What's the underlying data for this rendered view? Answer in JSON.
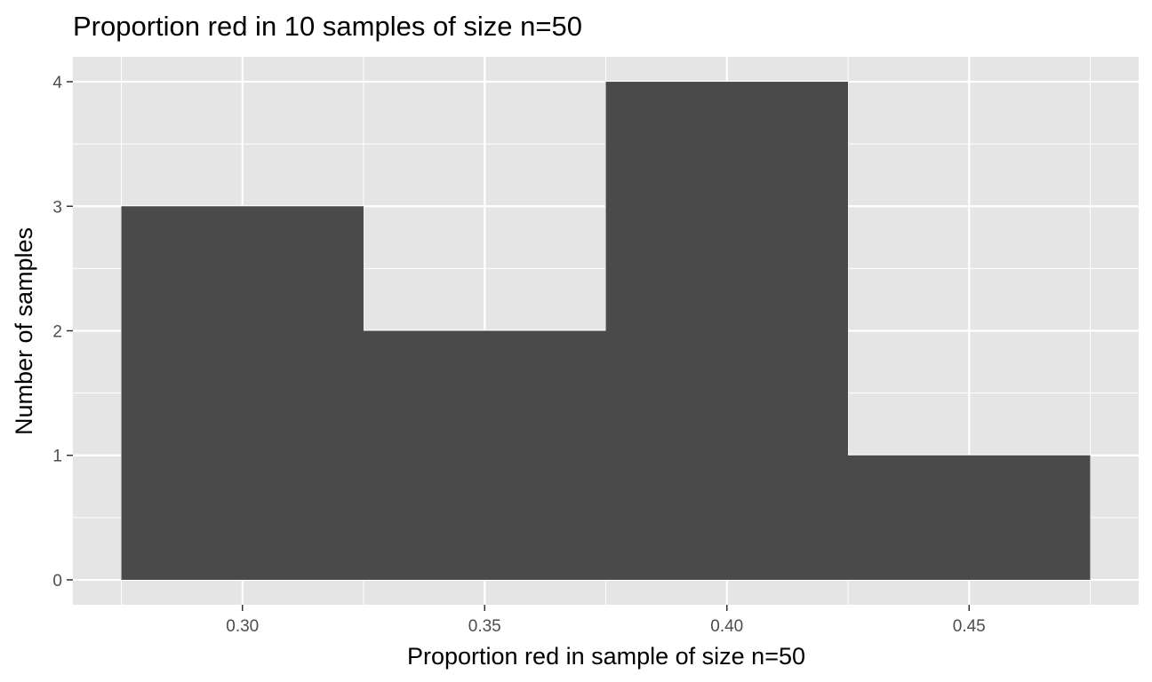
{
  "chart_data": {
    "type": "bar",
    "title": "Proportion red in 10 samples of size n=50",
    "xlabel": "Proportion red in sample of size n=50",
    "ylabel": "Number of samples",
    "bins": [
      {
        "x_start": 0.275,
        "x_end": 0.325,
        "count": 3
      },
      {
        "x_start": 0.325,
        "x_end": 0.375,
        "count": 2
      },
      {
        "x_start": 0.375,
        "x_end": 0.425,
        "count": 4
      },
      {
        "x_start": 0.425,
        "x_end": 0.475,
        "count": 1
      }
    ],
    "xlim": [
      0.265,
      0.485
    ],
    "ylim": [
      -0.2,
      4.2
    ],
    "x_ticks": [
      0.3,
      0.35,
      0.4,
      0.45
    ],
    "x_tick_labels": [
      "0.30",
      "0.35",
      "0.40",
      "0.45"
    ],
    "y_ticks": [
      0,
      1,
      2,
      3,
      4
    ],
    "y_tick_labels": [
      "0",
      "1",
      "2",
      "3",
      "4"
    ],
    "x_minor_ticks": [
      0.275,
      0.325,
      0.375,
      0.425,
      0.475
    ],
    "y_minor_ticks": [
      0.5,
      1.5,
      2.5,
      3.5
    ],
    "grid": true,
    "colors": {
      "panel_background": "#e5e5e5",
      "gridline": "#ffffff",
      "bar_fill": "#4a4a4a",
      "tick_text": "#4d4d4d",
      "tick_mark": "#333333"
    }
  }
}
